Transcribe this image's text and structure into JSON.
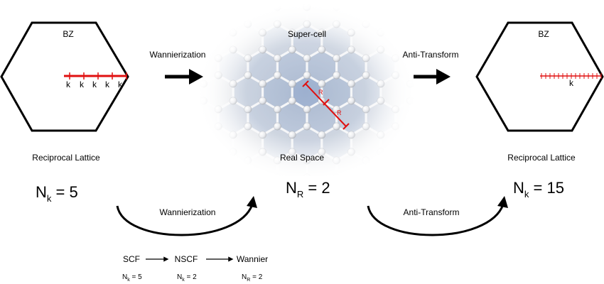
{
  "left": {
    "bz_label": "BZ",
    "k_labels": [
      "k",
      "k",
      "k",
      "k",
      "k"
    ],
    "caption": "Reciprocal Lattice",
    "n_base": "N",
    "n_sub": "k",
    "n_rest": " = 5"
  },
  "middle": {
    "title": "Super-cell",
    "caption": "Real Space",
    "r_labels": [
      "R",
      "R"
    ],
    "n_base": "N",
    "n_sub": "R",
    "n_rest": " = 2"
  },
  "right": {
    "bz_label": "BZ",
    "k_label": "k",
    "caption": "Reciprocal Lattice",
    "n_base": "N",
    "n_sub": "k",
    "n_rest": " = 15"
  },
  "arrows": {
    "top_left_label": "Wannierization",
    "top_right_label": "Anti-Transform",
    "curved_left_label": "Wannierization",
    "curved_right_label": "Anti-Transform"
  },
  "workflow": {
    "steps": [
      "SCF",
      "NSCF",
      "Wannier"
    ],
    "params": [
      {
        "base": "N",
        "sub": "k",
        "rest": " = 5"
      },
      {
        "base": "N",
        "sub": "k",
        "rest": " = 2"
      },
      {
        "base": "N",
        "sub": "R",
        "rest": " = 2"
      }
    ]
  },
  "colors": {
    "path_red": "#e01010",
    "black": "#000000",
    "cell_blue": "#8ea6cc"
  }
}
